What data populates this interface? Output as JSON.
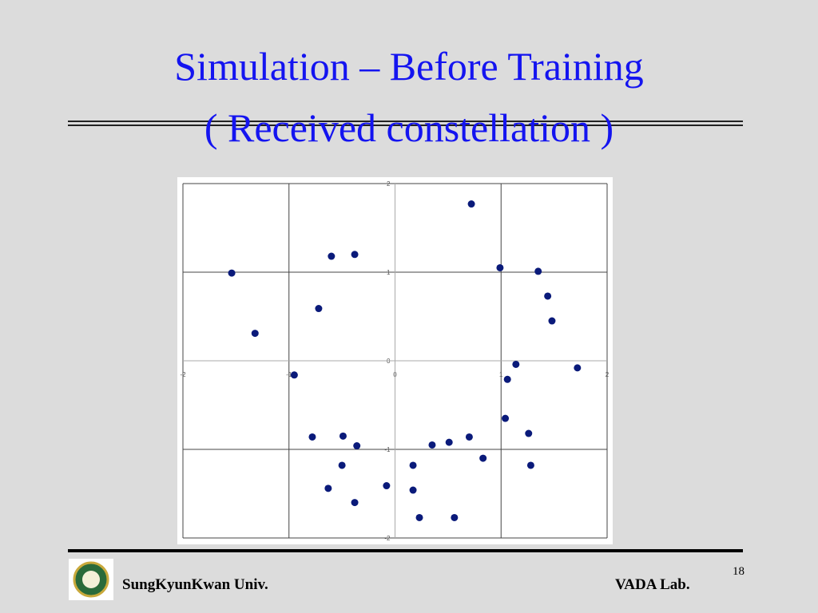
{
  "header": {
    "title_lines": [
      "Simulation – Before Training",
      "( Received constellation )"
    ]
  },
  "chart_data": {
    "type": "scatter",
    "x": [
      0.72,
      -1.54,
      -0.6,
      -0.38,
      0.99,
      1.35,
      -0.72,
      1.44,
      -1.32,
      1.48,
      1.14,
      -0.95,
      1.72,
      1.06,
      1.04,
      -0.78,
      -0.49,
      -0.36,
      0.35,
      0.51,
      0.7,
      1.26,
      0.83,
      -0.5,
      0.17,
      1.28,
      -0.63,
      -0.08,
      0.17,
      -0.38,
      0.23,
      0.56
    ],
    "y": [
      1.77,
      0.99,
      1.18,
      1.2,
      1.05,
      1.01,
      0.59,
      0.73,
      0.31,
      0.45,
      -0.04,
      -0.16,
      -0.08,
      -0.21,
      -0.65,
      -0.86,
      -0.85,
      -0.96,
      -0.95,
      -0.92,
      -0.86,
      -0.82,
      -1.1,
      -1.18,
      -1.18,
      -1.18,
      -1.44,
      -1.41,
      -1.46,
      -1.6,
      -1.77,
      -1.77
    ],
    "color": "#0a1a7a",
    "xlim": [
      -2,
      2
    ],
    "ylim": [
      -2,
      2
    ],
    "xticks": [
      -2,
      -1,
      0,
      1,
      2
    ],
    "yticks": [
      -2,
      -1,
      0,
      1,
      2
    ],
    "grid": true
  },
  "footer": {
    "left": "SungKyunKwan Univ.",
    "right": "VADA Lab.",
    "page": "18"
  }
}
